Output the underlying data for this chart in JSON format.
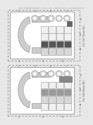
{
  "bg_color": "#e8e8e8",
  "panel_bg": "#ffffff",
  "header_text": "Patent Application Publication   May 22, 2012   Sheet 409 of 609   US 2012/0043202 A1",
  "fig1_label": "FIG. 527 (Sheet 08.)",
  "fig2_label": "FIG. 528 (Sheet 08.)",
  "dashed_box_color": "#999999",
  "dark_electrode_color": "#555555",
  "mid_electrode_color": "#999999",
  "light_cell_color": "#d8d8d8",
  "white_cell_color": "#f0f0f0",
  "tube_outer_color": "#bbbbbb",
  "tube_inner_color": "#ffffff",
  "device_fill": "#f5f5f5",
  "device_edge": "#777777",
  "text_color": "#444444",
  "highlight_color": "#aaaaaa",
  "dark_box_color": "#666666"
}
